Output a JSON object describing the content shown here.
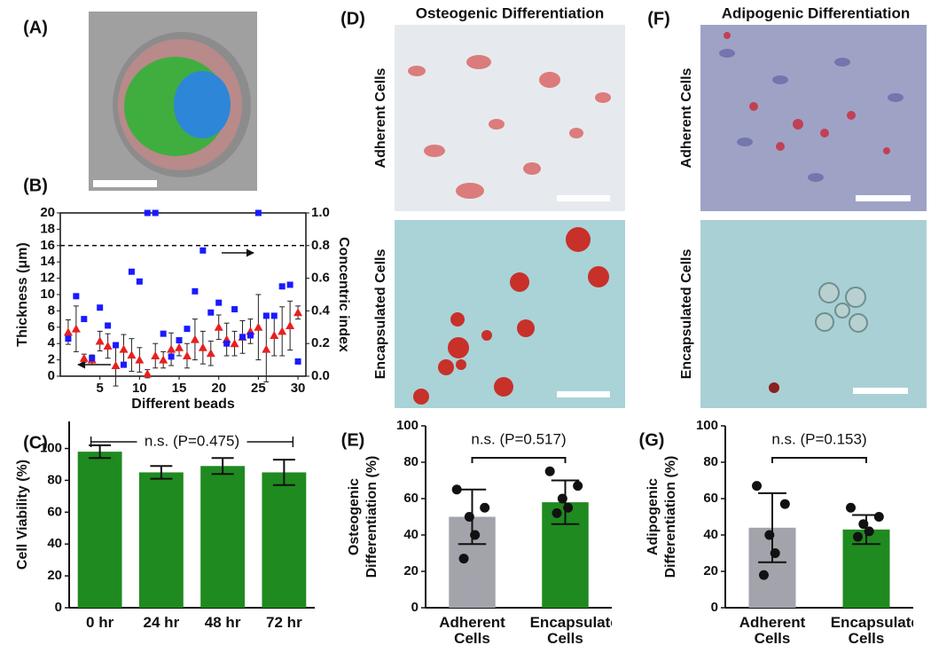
{
  "chart_data": [
    {
      "type": "scatter",
      "panel": "(B)",
      "xlabel": "Different beads",
      "ylabel": "Thickness (μm)",
      "y2label": "Concentric index",
      "x": [
        1,
        2,
        3,
        4,
        5,
        6,
        7,
        8,
        9,
        10,
        11,
        12,
        13,
        14,
        15,
        16,
        17,
        18,
        19,
        20,
        21,
        22,
        23,
        24,
        25,
        26,
        27,
        28,
        29,
        30
      ],
      "xlim": [
        0,
        31
      ],
      "xticks": [
        5,
        10,
        15,
        20,
        25,
        30
      ],
      "ylim": [
        0,
        20
      ],
      "yticks": [
        0,
        2,
        4,
        6,
        8,
        10,
        12,
        14,
        16,
        18,
        20
      ],
      "y2lim": [
        0,
        1
      ],
      "y2ticks": [
        {
          "value": 0,
          "label": "0.0"
        },
        0.2,
        0.4,
        0.6,
        0.8,
        {
          "value": 1,
          "label": "1.0"
        }
      ],
      "hline": 16,
      "series": [
        {
          "color": "#e82020",
          "marker": "triangle",
          "values": [
            5.4,
            5.8,
            2.2,
            2.0,
            4.3,
            3.7,
            1.3,
            3.3,
            2.6,
            2.0,
            0.3,
            2.5,
            2.0,
            3.3,
            3.5,
            2.5,
            4.5,
            3.5,
            2.8,
            6.0,
            4.5,
            4.0,
            4.8,
            5.5,
            6.0,
            3.3,
            5.0,
            5.5,
            6.2,
            7.8
          ],
          "errors": [
            1.5,
            2.8,
            0.5,
            0.6,
            1.2,
            1.5,
            2.5,
            1.8,
            2.0,
            1.5,
            0.5,
            1.5,
            1.0,
            2.0,
            1.0,
            1.5,
            2.5,
            2.0,
            1.5,
            1.5,
            2.0,
            1.5,
            2.0,
            1.5,
            4.0,
            4.0,
            2.5,
            3.0,
            3.0,
            0.8
          ]
        },
        {
          "color": "#1a1aff",
          "marker": "square",
          "axis": "y2",
          "values": [
            0.23,
            0.49,
            0.35,
            0.11,
            0.42,
            0.31,
            0.19,
            0.07,
            0.64,
            0.58,
            1.0,
            1.0,
            0.26,
            0.12,
            0.22,
            0.29,
            0.52,
            0.77,
            0.39,
            0.45,
            0.2,
            0.41,
            0.24,
            0.25,
            1.0,
            0.37,
            0.37,
            0.55,
            0.56,
            0.09
          ]
        }
      ]
    },
    {
      "type": "bar",
      "panel": "(C)",
      "ylabel": [
        "Cell Viability (%)"
      ],
      "categories": [
        "0 hr",
        "24 hr",
        "48 hr",
        "72 hr"
      ],
      "values": [
        98,
        85,
        89,
        85
      ],
      "errors": [
        4,
        4,
        5,
        8
      ],
      "color": "#1f8a1f",
      "ylim": [
        0,
        117
      ],
      "yticks": [
        0,
        20,
        40,
        60,
        80,
        100
      ],
      "annotation": "n.s. (P=0.475)"
    },
    {
      "type": "bar",
      "panel": "(E)",
      "ylabel": [
        "Osteogenic",
        "Differentiation (%)"
      ],
      "categories": [
        "Adherent Cells",
        "Encapsulated Cells"
      ],
      "values": [
        50,
        58
      ],
      "errors": [
        15,
        12
      ],
      "colors": [
        "#a3a3ab",
        "#1f8a1f"
      ],
      "points": [
        [
          65,
          55,
          50,
          40,
          27
        ],
        [
          75,
          67,
          60,
          55,
          52
        ]
      ],
      "ylim": [
        0,
        100
      ],
      "yticks": [
        0,
        20,
        40,
        60,
        80,
        100
      ],
      "annotation": "n.s. (P=0.517)"
    },
    {
      "type": "bar",
      "panel": "(G)",
      "ylabel": [
        "Adipogenic",
        "Differentiation (%)"
      ],
      "categories": [
        "Adherent Cells",
        "Encapsulated Cells"
      ],
      "values": [
        44,
        43
      ],
      "errors": [
        19,
        8
      ],
      "colors": [
        "#a3a3ab",
        "#1f8a1f"
      ],
      "points": [
        [
          67,
          57,
          40,
          30,
          18
        ],
        [
          55,
          50,
          46,
          42,
          39
        ]
      ],
      "ylim": [
        0,
        100
      ],
      "yticks": [
        0,
        20,
        40,
        60,
        80,
        100
      ],
      "annotation": "n.s. (P=0.153)"
    }
  ],
  "images": [
    {
      "panel": "(A)"
    },
    {
      "panel": "(D)",
      "title": "Osteogenic Differentiation",
      "rows": [
        "Adherent Cells",
        "Encapsulated Cells"
      ]
    },
    {
      "panel": "(F)",
      "title": "Adipogenic Differentiation",
      "rows": [
        "Adherent Cells",
        "Encapsulated Cells"
      ]
    }
  ]
}
